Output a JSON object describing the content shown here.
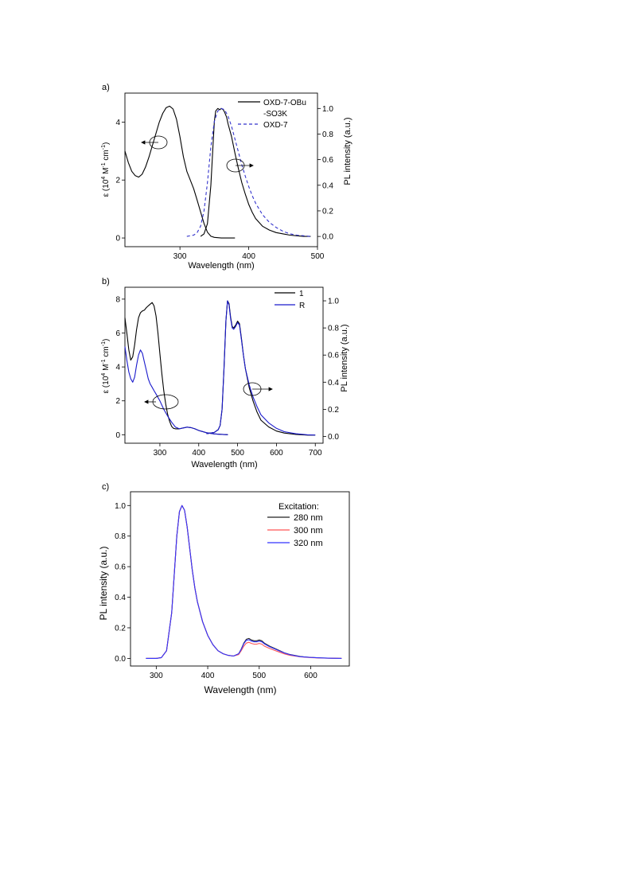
{
  "chart_data": [
    {
      "panel_label": "a)",
      "type": "line",
      "xlabel": "Wavelength (nm)",
      "xlim": [
        220,
        500
      ],
      "xticks": [
        300,
        400,
        500
      ],
      "ylabel_left": {
        "pre": "ε (10",
        "sup1": "4",
        "mid": " M",
        "sup2": "-1",
        "mid2": " cm",
        "sup3": "-1",
        "post": ")"
      },
      "ylim_left": [
        -0.3,
        5.0
      ],
      "yticks_left": [
        0,
        2,
        4
      ],
      "ylabel_right": "PL intensity (a.u.)",
      "ylim_right": [
        -0.08,
        1.12
      ],
      "yticks_right": [
        "0.0",
        "0.2",
        "0.4",
        "0.6",
        "0.8",
        "1.0"
      ],
      "legend": {
        "placement": "top-right",
        "entries": [
          "OXD-7-OBu",
          "-SO3K",
          "OXD-7"
        ]
      },
      "series": [
        {
          "axis": "left",
          "color": "#000000",
          "dash": false,
          "x": [
            220,
            225,
            230,
            235,
            240,
            245,
            250,
            255,
            260,
            265,
            270,
            275,
            280,
            285,
            290,
            295,
            300,
            305,
            310,
            315,
            320,
            325,
            330,
            335,
            340,
            345,
            350,
            360,
            380
          ],
          "y": [
            3.0,
            2.6,
            2.3,
            2.15,
            2.1,
            2.2,
            2.45,
            2.8,
            3.2,
            3.6,
            4.0,
            4.3,
            4.5,
            4.55,
            4.45,
            4.1,
            3.5,
            2.8,
            2.3,
            2.0,
            1.7,
            1.3,
            0.9,
            0.5,
            0.2,
            0.06,
            0.02,
            0.0,
            0.0
          ]
        },
        {
          "axis": "right",
          "color": "#000000",
          "dash": false,
          "x": [
            330,
            335,
            340,
            345,
            348,
            350,
            352,
            355,
            358,
            360,
            363,
            365,
            368,
            370,
            375,
            380,
            385,
            390,
            395,
            400,
            405,
            410,
            420,
            430,
            440,
            450,
            460,
            470,
            480,
            490
          ],
          "y": [
            0.0,
            0.02,
            0.1,
            0.4,
            0.7,
            0.9,
            0.98,
            1.0,
            0.99,
            1.0,
            0.99,
            0.97,
            0.93,
            0.88,
            0.78,
            0.65,
            0.53,
            0.42,
            0.33,
            0.25,
            0.19,
            0.14,
            0.08,
            0.05,
            0.03,
            0.02,
            0.01,
            0.005,
            0.0,
            0.0
          ]
        },
        {
          "axis": "right",
          "color": "#3333cc",
          "dash": true,
          "x": [
            310,
            320,
            325,
            330,
            335,
            340,
            345,
            350,
            355,
            360,
            365,
            370,
            375,
            380,
            385,
            390,
            395,
            400,
            405,
            410,
            420,
            430,
            440,
            450,
            460,
            470,
            480,
            490
          ],
          "y": [
            0.0,
            0.01,
            0.03,
            0.08,
            0.2,
            0.42,
            0.7,
            0.9,
            0.98,
            1.0,
            0.99,
            0.94,
            0.86,
            0.76,
            0.66,
            0.56,
            0.47,
            0.39,
            0.32,
            0.26,
            0.17,
            0.11,
            0.07,
            0.04,
            0.02,
            0.01,
            0.005,
            0.0
          ]
        }
      ]
    },
    {
      "panel_label": "b)",
      "type": "line",
      "xlabel": "Wavelength (nm)",
      "xlim": [
        210,
        720
      ],
      "xticks": [
        300,
        400,
        500,
        600,
        700
      ],
      "ylabel_left": {
        "pre": "ε (10",
        "sup1": "4",
        "mid": " M",
        "sup2": "-1",
        "mid2": " cm",
        "sup3": "-1",
        "post": ")"
      },
      "ylim_left": [
        -0.5,
        8.7
      ],
      "yticks_left": [
        0,
        2,
        4,
        6,
        8
      ],
      "ylabel_right": "PL intensity (a.u.)",
      "ylim_right": [
        -0.05,
        1.1
      ],
      "yticks_right": [
        "0.0",
        "0.2",
        "0.4",
        "0.6",
        "0.8",
        "1.0"
      ],
      "legend": {
        "placement": "top-right",
        "entries": [
          "1",
          "R"
        ]
      },
      "series": [
        {
          "axis": "left",
          "color": "#000000",
          "dash": false,
          "x": [
            210,
            215,
            220,
            225,
            230,
            235,
            240,
            245,
            250,
            255,
            260,
            265,
            270,
            275,
            280,
            285,
            290,
            295,
            300,
            305,
            310,
            315,
            320,
            325,
            330,
            335,
            340,
            350,
            360,
            370,
            380,
            390,
            400,
            420,
            440,
            460,
            475
          ],
          "y": [
            6.9,
            6.0,
            5.0,
            4.4,
            4.6,
            5.3,
            6.2,
            6.9,
            7.2,
            7.3,
            7.35,
            7.5,
            7.6,
            7.7,
            7.8,
            7.6,
            7.0,
            6.0,
            4.8,
            3.6,
            2.6,
            1.8,
            1.2,
            0.8,
            0.5,
            0.38,
            0.35,
            0.35,
            0.4,
            0.45,
            0.42,
            0.35,
            0.25,
            0.12,
            0.05,
            0.02,
            0.0
          ]
        },
        {
          "axis": "left",
          "color": "#1a1acc",
          "dash": false,
          "x": [
            210,
            215,
            220,
            225,
            230,
            235,
            240,
            245,
            250,
            255,
            260,
            265,
            270,
            275,
            280,
            285,
            290,
            300,
            310,
            320,
            330,
            340,
            350,
            360,
            370,
            380,
            390,
            400,
            420,
            440,
            460,
            475
          ],
          "y": [
            5.2,
            4.4,
            3.7,
            3.3,
            3.1,
            3.4,
            4.1,
            4.7,
            5.0,
            4.8,
            4.3,
            3.8,
            3.3,
            3.0,
            2.8,
            2.6,
            2.4,
            2.0,
            1.5,
            1.1,
            0.75,
            0.45,
            0.35,
            0.4,
            0.45,
            0.42,
            0.35,
            0.25,
            0.12,
            0.05,
            0.02,
            0.0
          ]
        },
        {
          "axis": "right",
          "color": "#000000",
          "dash": false,
          "x": [
            420,
            440,
            450,
            455,
            460,
            465,
            470,
            474,
            478,
            482,
            486,
            490,
            495,
            500,
            505,
            510,
            515,
            520,
            530,
            540,
            550,
            560,
            580,
            600,
            620,
            650,
            680,
            700
          ],
          "y": [
            0.02,
            0.03,
            0.05,
            0.08,
            0.2,
            0.5,
            0.85,
            1.0,
            0.98,
            0.88,
            0.81,
            0.8,
            0.82,
            0.85,
            0.83,
            0.72,
            0.6,
            0.5,
            0.36,
            0.26,
            0.18,
            0.12,
            0.07,
            0.04,
            0.025,
            0.015,
            0.01,
            0.01
          ]
        },
        {
          "axis": "right",
          "color": "#1a1acc",
          "dash": false,
          "x": [
            420,
            440,
            450,
            455,
            460,
            465,
            470,
            474,
            478,
            482,
            486,
            490,
            495,
            500,
            505,
            510,
            515,
            520,
            530,
            540,
            550,
            560,
            580,
            600,
            620,
            650,
            680,
            700
          ],
          "y": [
            0.02,
            0.03,
            0.05,
            0.08,
            0.2,
            0.5,
            0.85,
            1.0,
            0.97,
            0.87,
            0.8,
            0.79,
            0.81,
            0.84,
            0.82,
            0.71,
            0.6,
            0.5,
            0.38,
            0.29,
            0.22,
            0.16,
            0.1,
            0.06,
            0.035,
            0.02,
            0.012,
            0.01
          ]
        }
      ]
    },
    {
      "panel_label": "c)",
      "type": "line",
      "xlabel": "Wavelength (nm)",
      "xlim": [
        250,
        675
      ],
      "xticks": [
        300,
        400,
        500,
        600
      ],
      "ylabel_left": "PL intensity (a.u.)",
      "ylim_left": [
        -0.05,
        1.09
      ],
      "yticks_left": [
        "0.0",
        "0.2",
        "0.4",
        "0.6",
        "0.8",
        "1.0"
      ],
      "legend": {
        "placement": "top-right",
        "title": "Excitation:",
        "entries": [
          "280 nm",
          "300 nm",
          "320 nm"
        ]
      },
      "series": [
        {
          "name": "280 nm",
          "axis": "left",
          "color": "#222222",
          "dash": false,
          "x": [
            280,
            300,
            310,
            320,
            330,
            335,
            340,
            345,
            350,
            355,
            360,
            365,
            370,
            375,
            380,
            390,
            400,
            410,
            420,
            430,
            440,
            450,
            460,
            465,
            470,
            475,
            480,
            485,
            490,
            495,
            500,
            505,
            510,
            520,
            530,
            540,
            550,
            560,
            580,
            600,
            620,
            640,
            660
          ],
          "y": [
            0.0,
            0.0,
            0.005,
            0.05,
            0.3,
            0.55,
            0.8,
            0.96,
            1.0,
            0.97,
            0.86,
            0.72,
            0.58,
            0.46,
            0.37,
            0.24,
            0.15,
            0.09,
            0.05,
            0.03,
            0.02,
            0.015,
            0.03,
            0.06,
            0.1,
            0.125,
            0.13,
            0.12,
            0.115,
            0.115,
            0.12,
            0.115,
            0.1,
            0.08,
            0.065,
            0.05,
            0.035,
            0.025,
            0.012,
            0.006,
            0.003,
            0.001,
            0.0
          ]
        },
        {
          "name": "300 nm",
          "axis": "left",
          "color": "#ff5555",
          "dash": false,
          "x": [
            280,
            300,
            310,
            320,
            330,
            335,
            340,
            345,
            350,
            355,
            360,
            365,
            370,
            375,
            380,
            390,
            400,
            410,
            420,
            430,
            440,
            450,
            460,
            465,
            470,
            475,
            480,
            485,
            490,
            495,
            500,
            505,
            510,
            520,
            530,
            540,
            550,
            560,
            580,
            600,
            620,
            640,
            660
          ],
          "y": [
            0.0,
            0.0,
            0.005,
            0.05,
            0.3,
            0.55,
            0.8,
            0.96,
            1.0,
            0.97,
            0.86,
            0.72,
            0.58,
            0.46,
            0.37,
            0.24,
            0.15,
            0.09,
            0.05,
            0.03,
            0.02,
            0.015,
            0.025,
            0.05,
            0.08,
            0.1,
            0.105,
            0.098,
            0.093,
            0.093,
            0.098,
            0.093,
            0.08,
            0.065,
            0.052,
            0.04,
            0.028,
            0.02,
            0.01,
            0.005,
            0.002,
            0.001,
            0.0
          ]
        },
        {
          "name": "320 nm",
          "axis": "left",
          "color": "#3333ff",
          "dash": false,
          "x": [
            280,
            300,
            310,
            320,
            330,
            335,
            340,
            345,
            350,
            355,
            360,
            365,
            370,
            375,
            380,
            390,
            400,
            410,
            420,
            430,
            440,
            450,
            460,
            465,
            470,
            475,
            480,
            485,
            490,
            495,
            500,
            505,
            510,
            520,
            530,
            540,
            550,
            560,
            580,
            600,
            620,
            640,
            660
          ],
          "y": [
            0.0,
            0.0,
            0.005,
            0.05,
            0.3,
            0.55,
            0.8,
            0.96,
            1.0,
            0.97,
            0.86,
            0.72,
            0.58,
            0.46,
            0.37,
            0.24,
            0.15,
            0.09,
            0.05,
            0.03,
            0.02,
            0.015,
            0.03,
            0.058,
            0.095,
            0.118,
            0.122,
            0.113,
            0.108,
            0.108,
            0.113,
            0.108,
            0.095,
            0.076,
            0.062,
            0.048,
            0.034,
            0.024,
            0.011,
            0.006,
            0.003,
            0.001,
            0.0
          ]
        }
      ]
    }
  ]
}
